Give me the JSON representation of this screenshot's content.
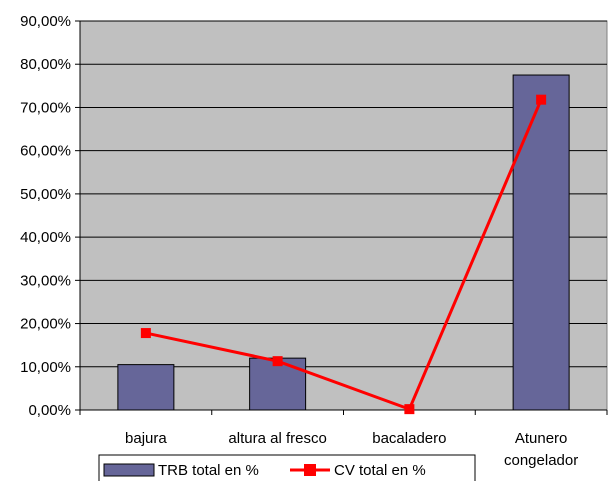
{
  "chart_data": {
    "type": "bar",
    "categories": [
      "bajura",
      "altura al fresco",
      "bacaladero",
      "Atunero congelador"
    ],
    "category_lines": [
      [
        "bajura"
      ],
      [
        "altura al fresco"
      ],
      [
        "bacaladero"
      ],
      [
        "Atunero",
        "congelador"
      ]
    ],
    "series": [
      {
        "name": "TRB total en %",
        "type": "bar",
        "values": [
          10.5,
          12.0,
          0.0,
          77.5
        ],
        "color": "#666699"
      },
      {
        "name": "CV total en %",
        "type": "line",
        "values": [
          17.8,
          11.3,
          0.2,
          71.8
        ],
        "color": "#ff0000"
      }
    ],
    "ylim": [
      0,
      90
    ],
    "yticks": [
      0,
      10,
      20,
      30,
      40,
      50,
      60,
      70,
      80,
      90
    ],
    "ytick_labels": [
      "0,00%",
      "10,00%",
      "20,00%",
      "30,00%",
      "40,00%",
      "50,00%",
      "60,00%",
      "70,00%",
      "80,00%",
      "90,00%"
    ],
    "grid": true,
    "plot_background": "#c0c0c0",
    "legend_position": "bottom"
  }
}
